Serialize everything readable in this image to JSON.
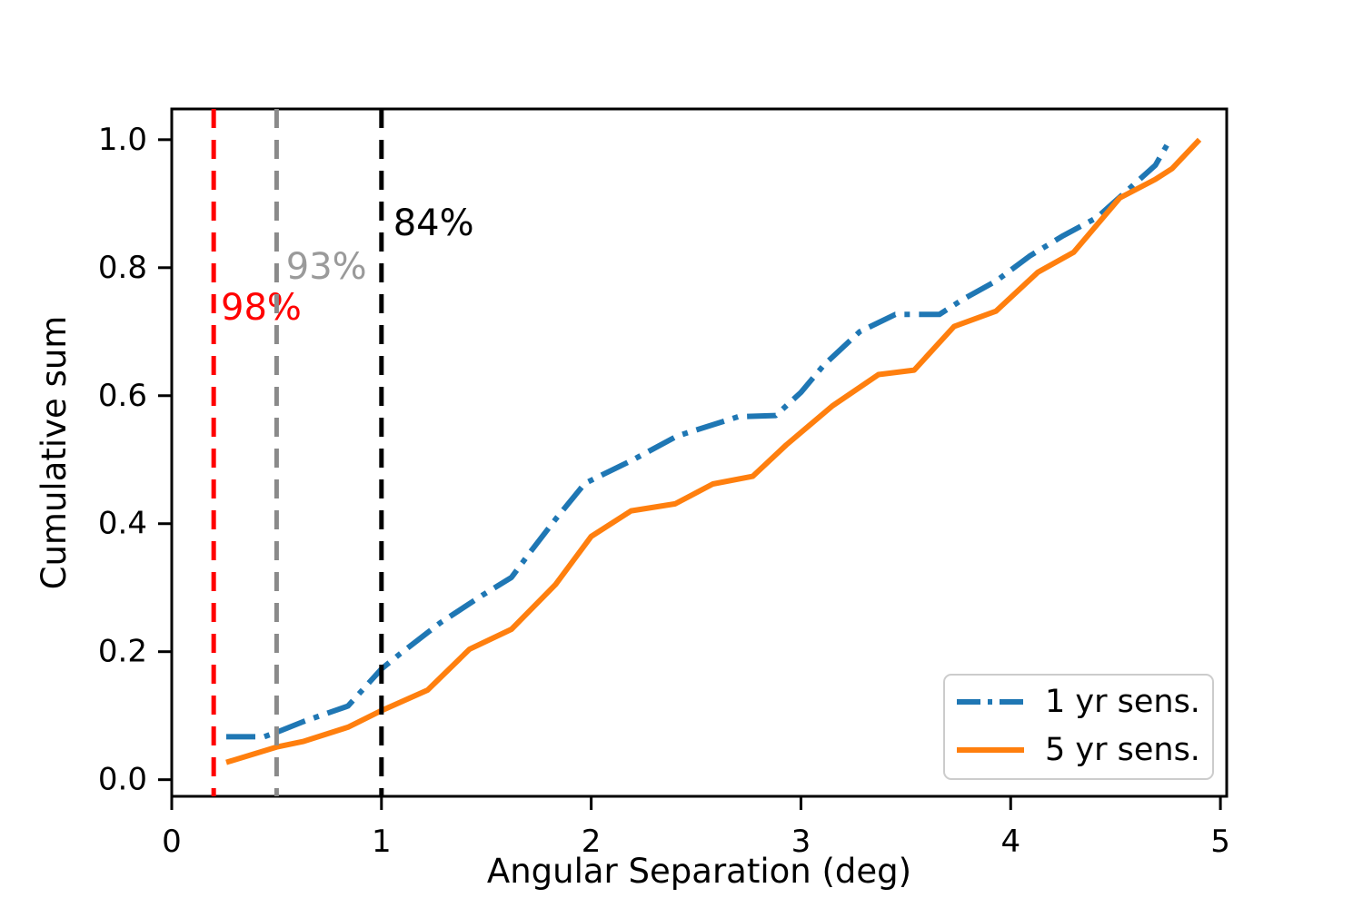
{
  "figure": {
    "background": "#ffffff"
  },
  "chart_data": {
    "type": "line",
    "title": "",
    "xlabel": "Angular Separation (deg)",
    "ylabel": "Cumulative sum",
    "xlim": [
      0,
      5.03
    ],
    "ylim": [
      -0.026,
      1.048
    ],
    "grid": false,
    "legend_position": "lower right",
    "xticks": [
      0,
      1,
      2,
      3,
      4,
      5
    ],
    "xtick_labels": [
      "0",
      "1",
      "2",
      "3",
      "4",
      "5"
    ],
    "yticks": [
      0.0,
      0.2,
      0.4,
      0.6,
      0.8,
      1.0
    ],
    "ytick_labels": [
      "0.0",
      "0.2",
      "0.4",
      "0.6",
      "0.8",
      "1.0"
    ],
    "axis_color": "#000000",
    "series": [
      {
        "name": "1 yr sens.",
        "color": "#1f77b4",
        "style": "dashdot",
        "points": [
          [
            0.26,
            0.067
          ],
          [
            0.44,
            0.067
          ],
          [
            0.5,
            0.074
          ],
          [
            0.63,
            0.091
          ],
          [
            0.84,
            0.115
          ],
          [
            1.0,
            0.173
          ],
          [
            1.09,
            0.197
          ],
          [
            1.28,
            0.245
          ],
          [
            1.48,
            0.288
          ],
          [
            1.62,
            0.316
          ],
          [
            1.71,
            0.356
          ],
          [
            1.83,
            0.407
          ],
          [
            1.97,
            0.463
          ],
          [
            2.2,
            0.5
          ],
          [
            2.41,
            0.537
          ],
          [
            2.7,
            0.567
          ],
          [
            2.88,
            0.569
          ],
          [
            3.0,
            0.605
          ],
          [
            3.11,
            0.648
          ],
          [
            3.28,
            0.7
          ],
          [
            3.45,
            0.727
          ],
          [
            3.66,
            0.727
          ],
          [
            3.77,
            0.75
          ],
          [
            3.93,
            0.779
          ],
          [
            4.09,
            0.818
          ],
          [
            4.25,
            0.85
          ],
          [
            4.41,
            0.878
          ],
          [
            4.54,
            0.916
          ],
          [
            4.69,
            0.96
          ],
          [
            4.76,
            1.0
          ]
        ]
      },
      {
        "name": "5 yr sens.",
        "color": "#ff7f0e",
        "style": "solid",
        "points": [
          [
            0.26,
            0.027
          ],
          [
            0.5,
            0.051
          ],
          [
            0.63,
            0.06
          ],
          [
            0.84,
            0.082
          ],
          [
            1.0,
            0.108
          ],
          [
            1.22,
            0.14
          ],
          [
            1.42,
            0.204
          ],
          [
            1.62,
            0.235
          ],
          [
            1.83,
            0.305
          ],
          [
            2.0,
            0.38
          ],
          [
            2.19,
            0.42
          ],
          [
            2.4,
            0.431
          ],
          [
            2.58,
            0.462
          ],
          [
            2.77,
            0.474
          ],
          [
            2.93,
            0.523
          ],
          [
            3.15,
            0.584
          ],
          [
            3.37,
            0.633
          ],
          [
            3.54,
            0.64
          ],
          [
            3.73,
            0.708
          ],
          [
            3.93,
            0.732
          ],
          [
            4.13,
            0.793
          ],
          [
            4.3,
            0.824
          ],
          [
            4.52,
            0.909
          ],
          [
            4.69,
            0.938
          ],
          [
            4.77,
            0.955
          ],
          [
            4.9,
            1.0
          ]
        ]
      }
    ],
    "vlines": [
      {
        "x": 0.2,
        "color": "#ff0000",
        "label": "98%",
        "label_color": "#ff0000",
        "label_x": 0.234,
        "label_y": 0.719
      },
      {
        "x": 0.5,
        "color": "#8a8a8a",
        "label": "93%",
        "label_color": "#9a9a9a",
        "label_x": 0.545,
        "label_y": 0.783
      },
      {
        "x": 1.0,
        "color": "#000000",
        "label": "84%",
        "label_color": "#000000",
        "label_x": 1.056,
        "label_y": 0.851
      }
    ],
    "legend": {
      "items": [
        "1 yr sens.",
        "5 yr sens."
      ]
    }
  }
}
